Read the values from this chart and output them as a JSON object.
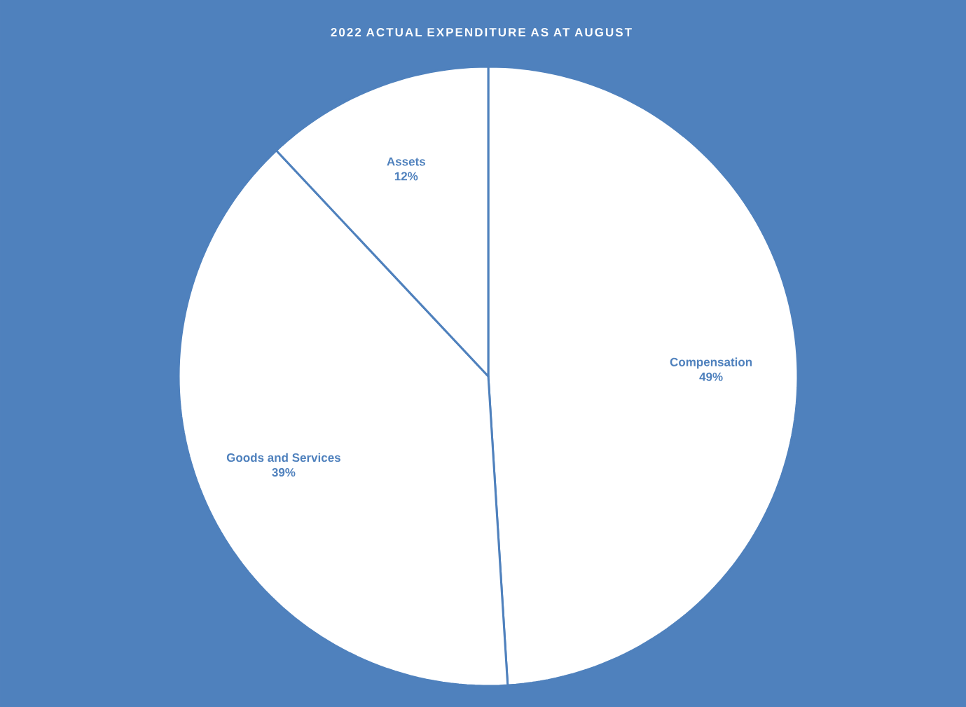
{
  "chart_data": {
    "type": "pie",
    "title": "2022 ACTUAL EXPENDITURE AS AT AUGUST",
    "categories": [
      "Compensation",
      "Goods and Services",
      "Assets"
    ],
    "values": [
      49,
      39,
      12
    ],
    "value_labels": [
      "49%",
      "39%",
      "12%"
    ],
    "colors": [
      "#ffffff",
      "#ffffff",
      "#ffffff"
    ]
  }
}
